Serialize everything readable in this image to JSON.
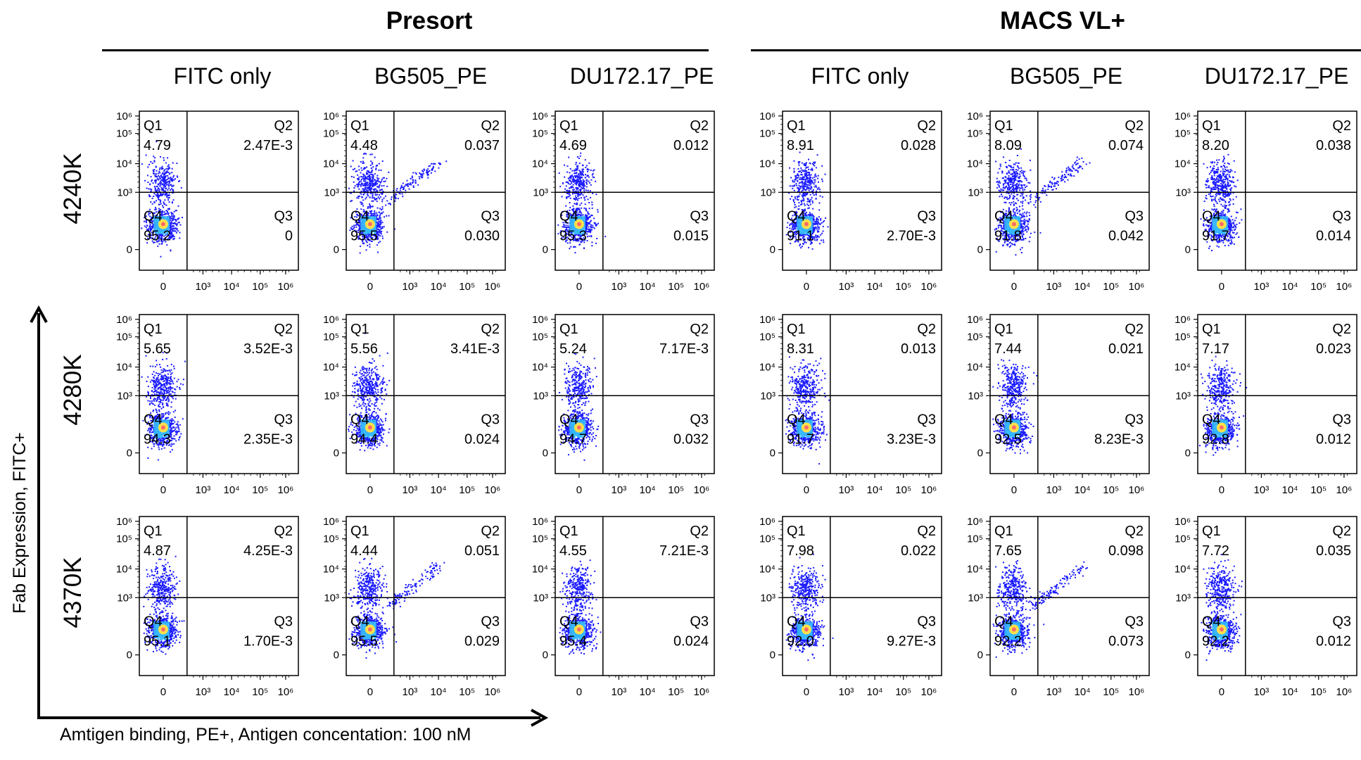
{
  "colors": {
    "frame": "#000000",
    "density_low": "#1a1aff",
    "density_mid": "#35b7ff",
    "density_high": "#ff6a6a",
    "background": "#ffffff"
  },
  "groups": [
    {
      "title": "Presort"
    },
    {
      "title": "MACS VL+"
    }
  ],
  "column_titles": [
    "FITC only",
    "BG505_PE",
    "DU172.17_PE",
    "FITC only",
    "BG505_PE",
    "DU172.17_PE"
  ],
  "row_labels": [
    "4240K",
    "4280K",
    "4370K"
  ],
  "x_axis_label": "Amtigen binding, PE+, Antigen concentation: 100 nM",
  "y_axis_label": "Fab Expression, FITC+",
  "quadrant_names": [
    "Q1",
    "Q2",
    "Q3",
    "Q4"
  ],
  "chart_data": {
    "type": "scatter",
    "subtype": "flow cytometry density dot plot grid (quadrant gates)",
    "x_ticks": [
      "0",
      "10³",
      "10⁴",
      "10⁵",
      "10⁶"
    ],
    "y_ticks": [
      "0",
      "10³",
      "10⁴",
      "10⁵",
      "10⁶"
    ],
    "axis_scale": "biexponential (log with linear region near 0)",
    "units": "percent of events per quadrant",
    "panels": [
      {
        "group": "Presort",
        "column": "FITC only",
        "row": "4240K",
        "Q1": "4.79",
        "Q2": "2.47E-3",
        "Q3": "0",
        "Q4": "95.2",
        "double_positive_tail": false
      },
      {
        "group": "Presort",
        "column": "BG505_PE",
        "row": "4240K",
        "Q1": "4.48",
        "Q2": "0.037",
        "Q3": "0.030",
        "Q4": "95.5",
        "double_positive_tail": true
      },
      {
        "group": "Presort",
        "column": "DU172.17_PE",
        "row": "4240K",
        "Q1": "4.69",
        "Q2": "0.012",
        "Q3": "0.015",
        "Q4": "95.3",
        "double_positive_tail": false
      },
      {
        "group": "MACS VL+",
        "column": "FITC only",
        "row": "4240K",
        "Q1": "8.91",
        "Q2": "0.028",
        "Q3": "2.70E-3",
        "Q4": "91.1",
        "double_positive_tail": false
      },
      {
        "group": "MACS VL+",
        "column": "BG505_PE",
        "row": "4240K",
        "Q1": "8.09",
        "Q2": "0.074",
        "Q3": "0.042",
        "Q4": "91.8",
        "double_positive_tail": true
      },
      {
        "group": "MACS VL+",
        "column": "DU172.17_PE",
        "row": "4240K",
        "Q1": "8.20",
        "Q2": "0.038",
        "Q3": "0.014",
        "Q4": "91.7",
        "double_positive_tail": false
      },
      {
        "group": "Presort",
        "column": "FITC only",
        "row": "4280K",
        "Q1": "5.65",
        "Q2": "3.52E-3",
        "Q3": "2.35E-3",
        "Q4": "94.3",
        "double_positive_tail": false
      },
      {
        "group": "Presort",
        "column": "BG505_PE",
        "row": "4280K",
        "Q1": "5.56",
        "Q2": "3.41E-3",
        "Q3": "0.024",
        "Q4": "94.4",
        "double_positive_tail": false
      },
      {
        "group": "Presort",
        "column": "DU172.17_PE",
        "row": "4280K",
        "Q1": "5.24",
        "Q2": "7.17E-3",
        "Q3": "0.032",
        "Q4": "94.7",
        "double_positive_tail": false
      },
      {
        "group": "MACS VL+",
        "column": "FITC only",
        "row": "4280K",
        "Q1": "8.31",
        "Q2": "0.013",
        "Q3": "3.23E-3",
        "Q4": "91.7",
        "double_positive_tail": false
      },
      {
        "group": "MACS VL+",
        "column": "BG505_PE",
        "row": "4280K",
        "Q1": "7.44",
        "Q2": "0.021",
        "Q3": "8.23E-3",
        "Q4": "92.5",
        "double_positive_tail": false
      },
      {
        "group": "MACS VL+",
        "column": "DU172.17_PE",
        "row": "4280K",
        "Q1": "7.17",
        "Q2": "0.023",
        "Q3": "0.012",
        "Q4": "92.8",
        "double_positive_tail": false
      },
      {
        "group": "Presort",
        "column": "FITC only",
        "row": "4370K",
        "Q1": "4.87",
        "Q2": "4.25E-3",
        "Q3": "1.70E-3",
        "Q4": "95.1",
        "double_positive_tail": false
      },
      {
        "group": "Presort",
        "column": "BG505_PE",
        "row": "4370K",
        "Q1": "4.44",
        "Q2": "0.051",
        "Q3": "0.029",
        "Q4": "95.5",
        "double_positive_tail": true
      },
      {
        "group": "Presort",
        "column": "DU172.17_PE",
        "row": "4370K",
        "Q1": "4.55",
        "Q2": "7.21E-3",
        "Q3": "0.024",
        "Q4": "95.4",
        "double_positive_tail": false
      },
      {
        "group": "MACS VL+",
        "column": "FITC only",
        "row": "4370K",
        "Q1": "7.98",
        "Q2": "0.022",
        "Q3": "9.27E-3",
        "Q4": "92.0",
        "double_positive_tail": false
      },
      {
        "group": "MACS VL+",
        "column": "BG505_PE",
        "row": "4370K",
        "Q1": "7.65",
        "Q2": "0.098",
        "Q3": "0.073",
        "Q4": "92.2",
        "double_positive_tail": true
      },
      {
        "group": "MACS VL+",
        "column": "DU172.17_PE",
        "row": "4370K",
        "Q1": "7.72",
        "Q2": "0.035",
        "Q3": "0.012",
        "Q4": "92.2",
        "double_positive_tail": false
      }
    ]
  }
}
